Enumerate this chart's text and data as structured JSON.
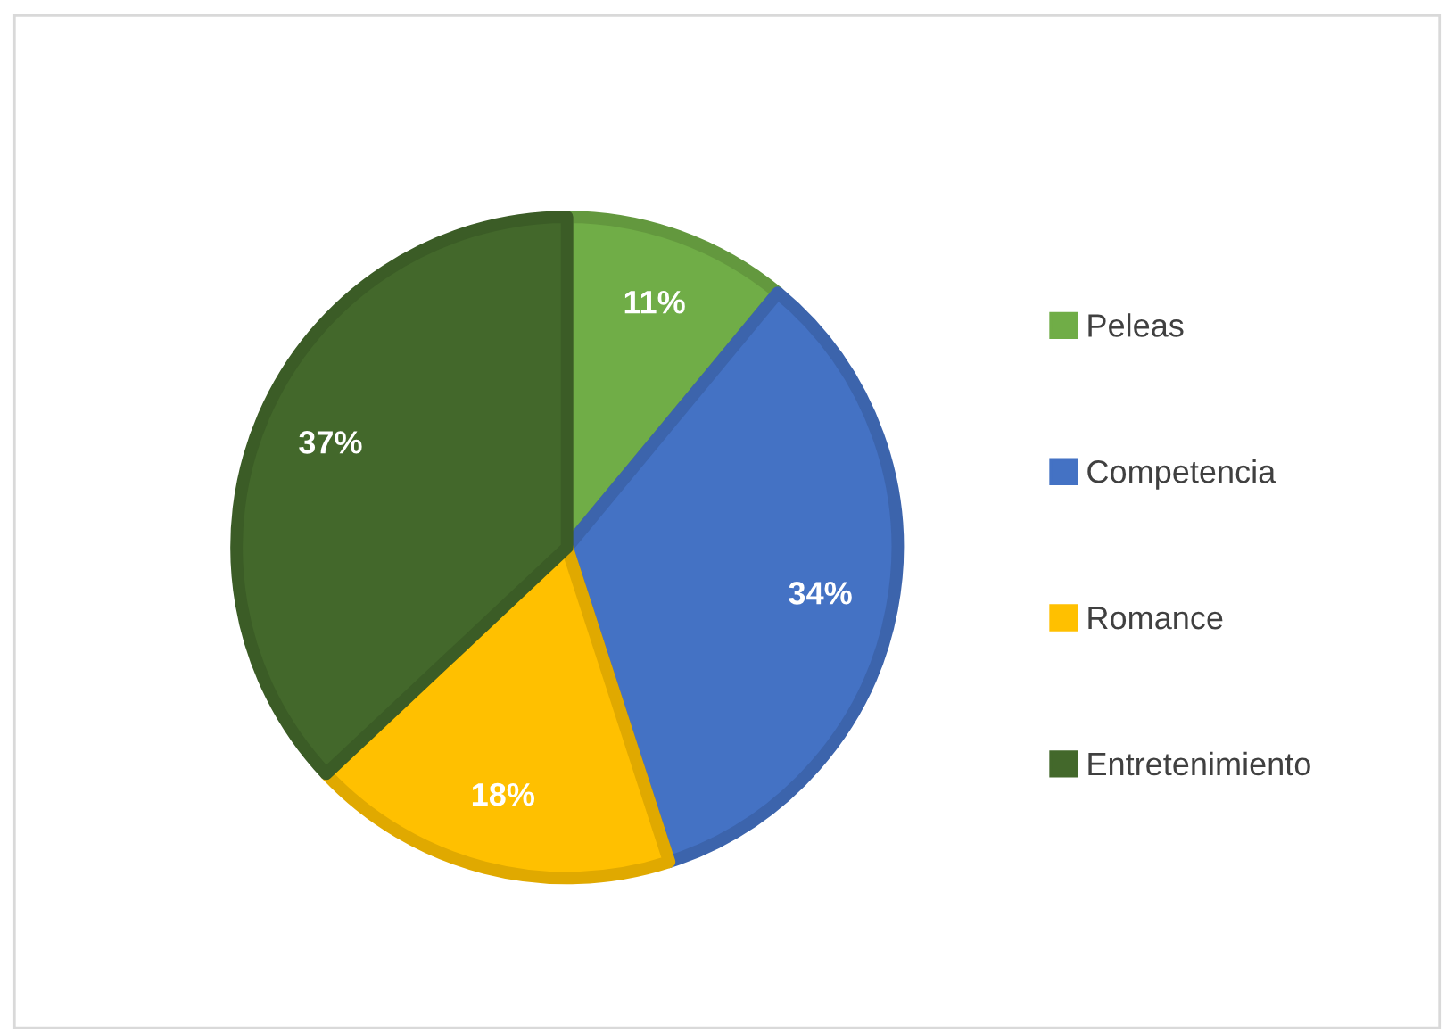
{
  "chart_data": {
    "type": "pie",
    "categories": [
      "Peleas",
      "Competencia",
      "Romance",
      "Entretenimiento"
    ],
    "values": [
      11,
      34,
      18,
      37
    ],
    "colors": [
      "#70ad47",
      "#4472c4",
      "#ffc000",
      "#43682b"
    ],
    "value_labels": [
      "11%",
      "34%",
      "18%",
      "37%"
    ],
    "legend": "right"
  }
}
